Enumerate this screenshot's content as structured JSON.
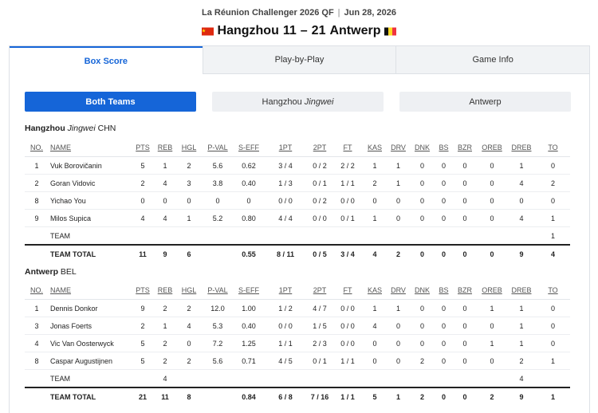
{
  "header": {
    "event": "La Réunion Challenger 2026 QF",
    "separator": "|",
    "date": "Jun 28, 2026",
    "home_team": "Hangzhou",
    "home_score": 11,
    "dash": "–",
    "away_score": 21,
    "away_team": "Antwerp"
  },
  "tabs": [
    "Box Score",
    "Play-by-Play",
    "Game Info"
  ],
  "filters": [
    {
      "label": "Both Teams"
    },
    {
      "label": "Hangzhou",
      "suffix": "Jingwei"
    },
    {
      "label": "Antwerp"
    }
  ],
  "columns": [
    "NO.",
    "NAME",
    "PTS",
    "REB",
    "HGL",
    "P-VAL",
    "S-EFF",
    "1PT",
    "2PT",
    "FT",
    "KAS",
    "DRV",
    "DNK",
    "BS",
    "BZR",
    "OREB",
    "DREB",
    "TO"
  ],
  "teams": [
    {
      "name": "Hangzhou",
      "suffix": "Jingwei",
      "code": "CHN",
      "rows": [
        [
          "1",
          "Vuk Borovičanin",
          "5",
          "1",
          "2",
          "5.6",
          "0.62",
          "3 / 4",
          "0 / 2",
          "2 / 2",
          "1",
          "1",
          "0",
          "0",
          "0",
          "0",
          "1",
          "0"
        ],
        [
          "2",
          "Goran Vidovic",
          "2",
          "4",
          "3",
          "3.8",
          "0.40",
          "1 / 3",
          "0 / 1",
          "1 / 1",
          "2",
          "1",
          "0",
          "0",
          "0",
          "0",
          "4",
          "2"
        ],
        [
          "8",
          "Yichao You",
          "0",
          "0",
          "0",
          "0",
          "0",
          "0 / 0",
          "0 / 2",
          "0 / 0",
          "0",
          "0",
          "0",
          "0",
          "0",
          "0",
          "0",
          "0"
        ],
        [
          "9",
          "Milos Supica",
          "4",
          "4",
          "1",
          "5.2",
          "0.80",
          "4 / 4",
          "0 / 0",
          "0 / 1",
          "1",
          "0",
          "0",
          "0",
          "0",
          "0",
          "4",
          "1"
        ]
      ],
      "team_row": [
        null,
        "TEAM",
        null,
        null,
        null,
        null,
        null,
        null,
        null,
        null,
        null,
        null,
        null,
        null,
        null,
        null,
        null,
        "1"
      ],
      "total_row": [
        null,
        "TEAM TOTAL",
        "11",
        "9",
        "6",
        null,
        "0.55",
        "8 / 11",
        "0 / 5",
        "3 / 4",
        "4",
        "2",
        "0",
        "0",
        "0",
        "0",
        "9",
        "4"
      ]
    },
    {
      "name": "Antwerp",
      "code": "BEL",
      "rows": [
        [
          "1",
          "Dennis Donkor",
          "9",
          "2",
          "2",
          "12.0",
          "1.00",
          "1 / 2",
          "4 / 7",
          "0 / 0",
          "1",
          "1",
          "0",
          "0",
          "0",
          "1",
          "1",
          "0"
        ],
        [
          "3",
          "Jonas Foerts",
          "2",
          "1",
          "4",
          "5.3",
          "0.40",
          "0 / 0",
          "1 / 5",
          "0 / 0",
          "4",
          "0",
          "0",
          "0",
          "0",
          "0",
          "1",
          "0"
        ],
        [
          "4",
          "Vic Van Oosterwyck",
          "5",
          "2",
          "0",
          "7.2",
          "1.25",
          "1 / 1",
          "2 / 3",
          "0 / 0",
          "0",
          "0",
          "0",
          "0",
          "0",
          "1",
          "1",
          "0"
        ],
        [
          "8",
          "Caspar Augustijnen",
          "5",
          "2",
          "2",
          "5.6",
          "0.71",
          "4 / 5",
          "0 / 1",
          "1 / 1",
          "0",
          "0",
          "2",
          "0",
          "0",
          "0",
          "2",
          "1"
        ]
      ],
      "team_row": [
        null,
        "TEAM",
        null,
        "4",
        null,
        null,
        null,
        null,
        null,
        null,
        null,
        null,
        null,
        null,
        null,
        null,
        "4",
        null
      ],
      "total_row": [
        null,
        "TEAM TOTAL",
        "21",
        "11",
        "8",
        null,
        "0.84",
        "6 / 8",
        "7 / 16",
        "1 / 1",
        "5",
        "1",
        "2",
        "0",
        "0",
        "2",
        "9",
        "1"
      ]
    }
  ]
}
